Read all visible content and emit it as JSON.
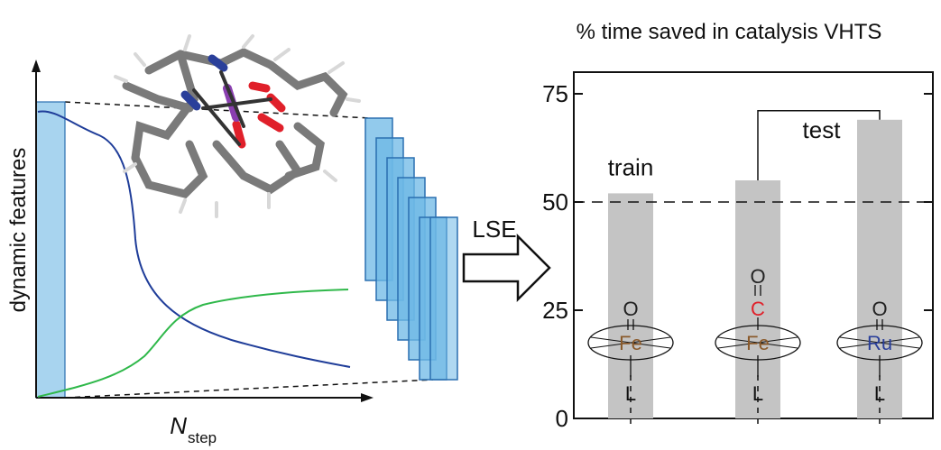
{
  "left_panel": {
    "ylabel": "dynamic features",
    "xlabel_main": "N",
    "xlabel_sub": "step",
    "colors": {
      "window_fill": "#a8d4ef",
      "window_stroke": "#2a6fb0",
      "stack_fill": "#6db8e6",
      "blue_curve": "#1f3d99",
      "green_curve": "#2fb84a"
    }
  },
  "arrow": {
    "label": "LSE"
  },
  "chart_data": {
    "type": "bar",
    "title": "% time saved in catalysis VHTS",
    "categories": [
      "Fe=O",
      "Fe-CO",
      "Ru=O"
    ],
    "values": [
      52,
      55,
      69
    ],
    "ylim": [
      0,
      80
    ],
    "yticks": [
      0,
      25,
      50,
      75
    ],
    "xlabel": "",
    "ylabel": "",
    "reference_line": 50,
    "grid": false,
    "annotations": {
      "train": "train",
      "test": "test"
    },
    "catalysts": [
      {
        "top": "O",
        "metal": "Fe",
        "bottom": "L",
        "top_color": "#222222",
        "metal_color": "#8a5a2b"
      },
      {
        "top": "O",
        "top2": "C",
        "metal": "Fe",
        "bottom": "L",
        "top_color": "#222222",
        "top2_color": "#e0202a",
        "metal_color": "#8a5a2b"
      },
      {
        "top": "O",
        "metal": "Ru",
        "bottom": "L",
        "top_color": "#222222",
        "metal_color": "#2a3f9a"
      }
    ],
    "bar_color": "#c4c4c4"
  }
}
